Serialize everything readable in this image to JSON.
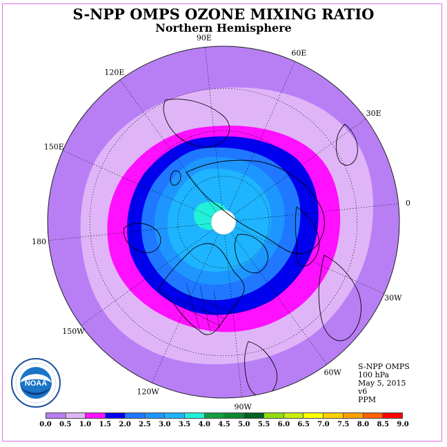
{
  "header": {
    "title": "S-NPP OMPS OZONE MIXING RATIO",
    "subtitle": "Northern Hemisphere"
  },
  "map": {
    "projection": "north-polar-stereographic",
    "longitude_labels": [
      "90E",
      "60E",
      "30E",
      "0",
      "30W",
      "60W",
      "90W",
      "120W",
      "150W",
      "180",
      "150E",
      "120E"
    ],
    "longitude_values": [
      90,
      60,
      30,
      0,
      -30,
      -60,
      -90,
      -120,
      -150,
      180,
      150,
      120
    ]
  },
  "info": {
    "lines": [
      "S-NPP OMPS",
      "100 hPa",
      "May 5, 2015",
      "v6",
      "PPM"
    ]
  },
  "colorbar": {
    "ticks": [
      "0.0",
      "0.5",
      "1.0",
      "1.5",
      "2.0",
      "2.5",
      "3.0",
      "3.5",
      "4.0",
      "4.5",
      "5.0",
      "5.5",
      "6.0",
      "6.5",
      "7.0",
      "7.5",
      "8.0",
      "8.5",
      "9.0"
    ],
    "colors": [
      "#b87ff5",
      "#e0b5f8",
      "#ff10ff",
      "#0000ee",
      "#1f78ff",
      "#1e96ff",
      "#1fb4ff",
      "#22f0d8",
      "#10a040",
      "#0c8a30",
      "#026020",
      "#90dd10",
      "#c4ee10",
      "#ffff00",
      "#ffd000",
      "#ffa000",
      "#ff6000",
      "#ff0000",
      "#8b5a2b"
    ]
  },
  "logo": {
    "text": "NOAA",
    "ring_text": "NATIONAL OCEANIC AND ATMOSPHERIC ADMINISTRATION · U.S. DEPARTMENT OF COMMERCE"
  }
}
